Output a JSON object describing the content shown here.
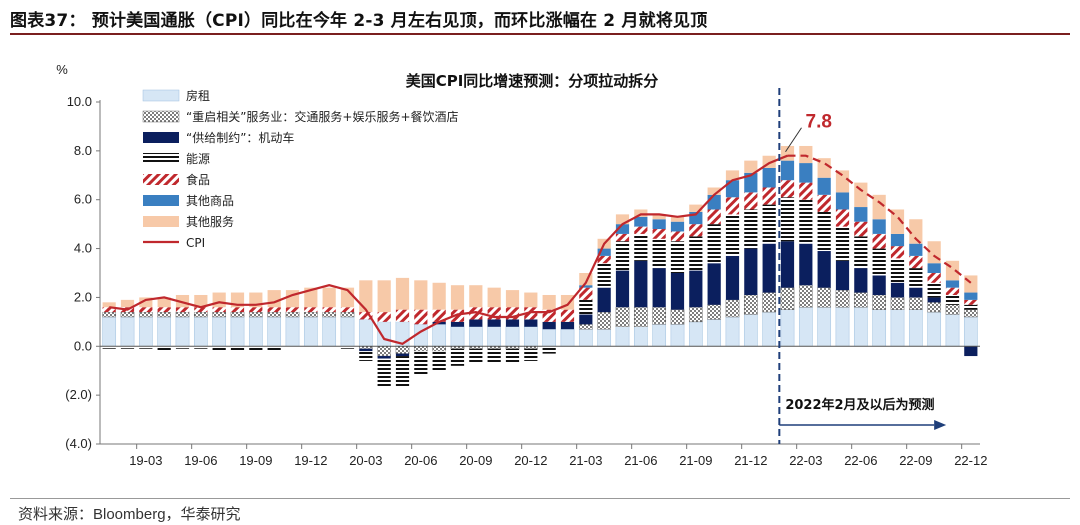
{
  "header": {
    "title": "图表37： 预计美国通胀（CPI）同比在今年 2-3 月左右见顶，而环比涨幅在 2 月就将见顶"
  },
  "source": "资料来源：Bloomberg，华泰研究",
  "chart_data": {
    "type": "bar",
    "stacked": true,
    "title": "美国CPI同比增速预测：分项拉动拆分",
    "ylabel": "%",
    "ylim": [
      -4,
      10
    ],
    "yticks": [
      10,
      8,
      6,
      4,
      2,
      0,
      -2,
      -4
    ],
    "ytick_labels": [
      "10.0",
      "8.0",
      "6.0",
      "4.0",
      "2.0",
      "0.0",
      "(2.0)",
      "(4.0)"
    ],
    "xtick_labels": [
      "19-03",
      "19-06",
      "19-09",
      "19-12",
      "20-03",
      "20-06",
      "20-09",
      "20-12",
      "21-03",
      "21-06",
      "21-09",
      "21-12",
      "22-03",
      "22-06",
      "22-09",
      "22-12"
    ],
    "categories": [
      "19-01",
      "19-02",
      "19-03",
      "19-04",
      "19-05",
      "19-06",
      "19-07",
      "19-08",
      "19-09",
      "19-10",
      "19-11",
      "19-12",
      "20-01",
      "20-02",
      "20-03",
      "20-04",
      "20-05",
      "20-06",
      "20-07",
      "20-08",
      "20-09",
      "20-10",
      "20-11",
      "20-12",
      "21-01",
      "21-02",
      "21-03",
      "21-04",
      "21-05",
      "21-06",
      "21-07",
      "21-08",
      "21-09",
      "21-10",
      "21-11",
      "21-12",
      "22-01",
      "22-02",
      "22-03",
      "22-04",
      "22-05",
      "22-06",
      "22-07",
      "22-08",
      "22-09",
      "22-10",
      "22-11",
      "22-12"
    ],
    "series": [
      {
        "name": "房租",
        "color": "#d6e6f5",
        "values": [
          1.2,
          1.2,
          1.2,
          1.2,
          1.2,
          1.2,
          1.2,
          1.2,
          1.2,
          1.2,
          1.2,
          1.2,
          1.2,
          1.2,
          1.1,
          1.0,
          1.0,
          0.9,
          0.9,
          0.8,
          0.8,
          0.8,
          0.8,
          0.8,
          0.7,
          0.7,
          0.7,
          0.7,
          0.8,
          0.8,
          0.9,
          0.9,
          1.0,
          1.1,
          1.2,
          1.3,
          1.4,
          1.5,
          1.6,
          1.6,
          1.6,
          1.6,
          1.5,
          1.5,
          1.5,
          1.4,
          1.3,
          1.2
        ]
      },
      {
        "name": "“重启相关”服务业：交通服务+娱乐服务+餐饮酒店",
        "color": "#ffffff",
        "values": [
          0.2,
          0.2,
          0.2,
          0.2,
          0.2,
          0.2,
          0.2,
          0.2,
          0.2,
          0.2,
          0.2,
          0.2,
          0.2,
          0.2,
          -0.1,
          -0.4,
          -0.3,
          -0.2,
          -0.2,
          -0.1,
          -0.1,
          -0.1,
          -0.1,
          -0.1,
          0.0,
          0.0,
          0.2,
          0.7,
          0.8,
          0.8,
          0.7,
          0.6,
          0.6,
          0.6,
          0.7,
          0.8,
          0.8,
          0.9,
          0.9,
          0.8,
          0.7,
          0.6,
          0.6,
          0.5,
          0.5,
          0.4,
          0.4,
          0.3
        ]
      },
      {
        "name": "“供给制约”：机动车",
        "color": "#0b1f5e",
        "values": [
          0.0,
          0.0,
          0.0,
          0.0,
          0.0,
          0.0,
          0.0,
          0.0,
          0.0,
          0.0,
          0.0,
          0.0,
          0.0,
          0.0,
          -0.1,
          -0.1,
          -0.1,
          0.0,
          0.1,
          0.2,
          0.3,
          0.3,
          0.3,
          0.3,
          0.3,
          0.3,
          0.4,
          1.0,
          1.5,
          1.9,
          1.6,
          1.5,
          1.5,
          1.7,
          1.8,
          1.9,
          2.0,
          1.9,
          1.7,
          1.5,
          1.2,
          1.0,
          0.8,
          0.6,
          0.4,
          0.2,
          0.0,
          -0.4
        ]
      },
      {
        "name": "能源",
        "color": "#1a1a1a",
        "values": [
          -0.1,
          -0.1,
          -0.1,
          -0.2,
          -0.1,
          -0.1,
          -0.2,
          -0.2,
          -0.2,
          -0.2,
          0.0,
          0.0,
          0.0,
          -0.1,
          -0.4,
          -1.2,
          -1.3,
          -1.0,
          -0.8,
          -0.7,
          -0.6,
          -0.6,
          -0.6,
          -0.5,
          -0.3,
          0.0,
          0.6,
          1.0,
          1.2,
          1.1,
          1.2,
          1.3,
          1.4,
          1.6,
          1.7,
          1.6,
          1.6,
          1.8,
          1.8,
          1.6,
          1.4,
          1.3,
          1.1,
          1.0,
          0.8,
          0.6,
          0.4,
          0.2
        ]
      },
      {
        "name": "食品",
        "color": "#c0282d",
        "values": [
          0.2,
          0.2,
          0.2,
          0.2,
          0.2,
          0.2,
          0.2,
          0.2,
          0.2,
          0.2,
          0.2,
          0.2,
          0.2,
          0.2,
          0.3,
          0.4,
          0.5,
          0.6,
          0.5,
          0.5,
          0.5,
          0.5,
          0.5,
          0.5,
          0.5,
          0.5,
          0.5,
          0.3,
          0.3,
          0.3,
          0.4,
          0.4,
          0.5,
          0.6,
          0.7,
          0.7,
          0.7,
          0.7,
          0.7,
          0.7,
          0.7,
          0.6,
          0.6,
          0.5,
          0.5,
          0.4,
          0.3,
          0.2
        ]
      },
      {
        "name": "其他商品",
        "color": "#3a7fc1",
        "values": [
          0.0,
          0.0,
          0.0,
          0.0,
          0.0,
          0.0,
          0.0,
          0.0,
          0.0,
          0.0,
          0.0,
          0.0,
          0.0,
          0.0,
          0.0,
          0.0,
          0.0,
          0.0,
          0.0,
          0.0,
          0.0,
          0.0,
          0.0,
          0.0,
          0.0,
          0.0,
          0.1,
          0.3,
          0.4,
          0.4,
          0.4,
          0.4,
          0.5,
          0.6,
          0.7,
          0.8,
          0.8,
          0.8,
          0.8,
          0.7,
          0.7,
          0.6,
          0.6,
          0.5,
          0.5,
          0.4,
          0.3,
          0.3
        ]
      },
      {
        "name": "其他服务",
        "color": "#f7c9a8",
        "values": [
          0.2,
          0.3,
          0.4,
          0.4,
          0.5,
          0.5,
          0.6,
          0.6,
          0.6,
          0.7,
          0.7,
          0.8,
          0.8,
          0.8,
          1.3,
          1.3,
          1.3,
          1.2,
          1.1,
          1.0,
          0.9,
          0.8,
          0.7,
          0.6,
          0.6,
          0.6,
          0.5,
          0.4,
          0.4,
          0.3,
          0.2,
          0.2,
          0.3,
          0.3,
          0.4,
          0.5,
          0.5,
          0.6,
          0.7,
          0.8,
          0.9,
          1.0,
          1.0,
          1.0,
          1.0,
          0.9,
          0.8,
          0.7
        ]
      }
    ],
    "line": {
      "name": "CPI",
      "color": "#c0282d",
      "values": [
        1.6,
        1.5,
        1.9,
        2.0,
        1.8,
        1.6,
        1.8,
        1.7,
        1.7,
        1.8,
        2.1,
        2.3,
        2.5,
        2.3,
        1.5,
        0.3,
        0.1,
        0.6,
        1.0,
        1.3,
        1.4,
        1.2,
        1.2,
        1.4,
        1.4,
        1.7,
        2.6,
        4.2,
        5.0,
        5.4,
        5.4,
        5.3,
        5.4,
        6.2,
        6.8,
        7.0,
        7.5,
        7.8,
        7.8,
        7.5,
        7.0,
        6.4,
        5.9,
        5.3,
        4.4,
        3.7,
        3.2,
        2.6
      ]
    },
    "forecast_start_index": 37,
    "annotations": {
      "peak_label": "7.8",
      "forecast_text": "2022年2月及以后为预测"
    }
  }
}
